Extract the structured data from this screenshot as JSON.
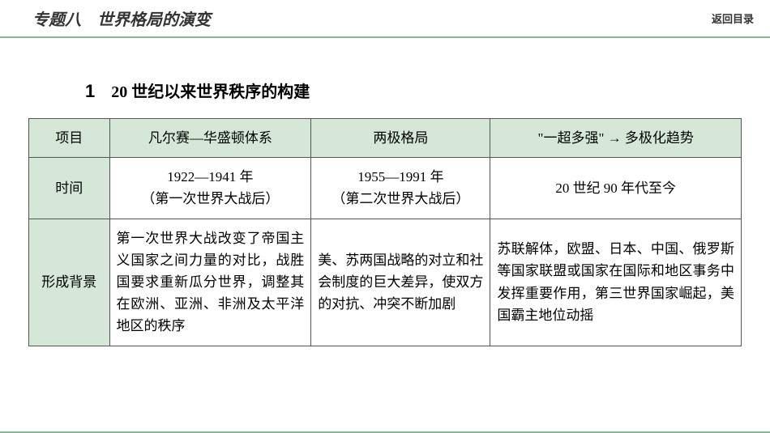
{
  "header": {
    "title": "专题八　世界格局的演变",
    "back_link": "返回目录"
  },
  "section": {
    "num": "1",
    "title": "20 世纪以来世界秩序的构建"
  },
  "table": {
    "columns": {
      "label": "项目",
      "col_a": "凡尔赛—华盛顿体系",
      "col_b": "两极格局",
      "col_c": "\"一超多强\" → 多极化趋势"
    },
    "rows": [
      {
        "label": "时间",
        "a": "1922—1941 年\n（第一次世界大战后）",
        "b": "1955—1991 年\n（第二次世界大战后）",
        "c": "20 世纪 90 年代至今"
      },
      {
        "label": "形成背景",
        "a": "第一次世界大战改变了帝国主义国家之间力量的对比，战胜国要求重新瓜分世界，调整其在欧洲、亚洲、非洲及太平洋地区的秩序",
        "b": "美、苏两国战略的对立和社会制度的巨大差异，使双方的对抗、冲突不断加剧",
        "c": "苏联解体，欧盟、日本、中国、俄罗斯等国家联盟或国家在国际和地区事务中发挥重要作用，第三世界国家崛起，美国霸主地位动摇"
      }
    ]
  },
  "colors": {
    "accent_green": "#7fbf8f",
    "header_bg": "#d5e8d8",
    "border": "#555555",
    "text": "#333333",
    "background": "#ffffff"
  }
}
